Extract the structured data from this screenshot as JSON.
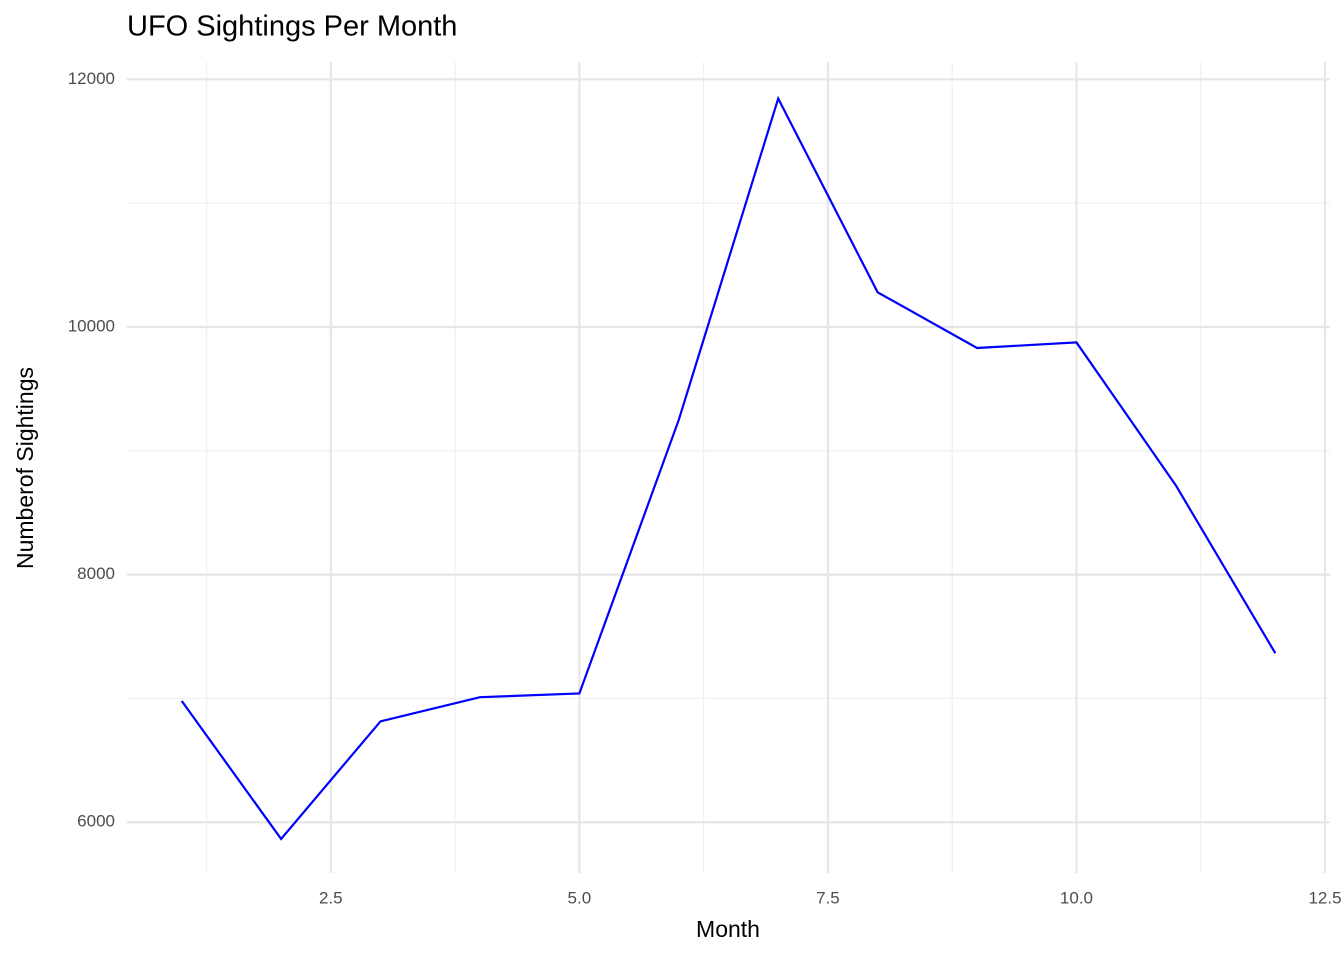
{
  "chart_data": {
    "type": "line",
    "title": "UFO Sightings Per Month",
    "x_label": "Month",
    "y_label": "Numberof Sightings",
    "x": [
      1,
      2,
      3,
      4,
      5,
      6,
      7,
      8,
      9,
      10,
      11,
      12
    ],
    "series": [
      {
        "name": "Sightings",
        "color": "#0000ff",
        "values": [
          6980,
          5865,
          6815,
          7010,
          7040,
          9250,
          11845,
          10280,
          9830,
          9875,
          8720,
          7365
        ]
      }
    ],
    "xlim": [
      0.45,
      12.55
    ],
    "xticks": [
      2.5,
      {
        "value": 5,
        "label": "5.0"
      },
      7.5,
      {
        "value": 10,
        "label": "10.0"
      },
      12.5
    ],
    "ylim": [
      5590,
      12140
    ],
    "yticks": [
      6000,
      8000,
      10000,
      12000
    ],
    "grid": true
  }
}
